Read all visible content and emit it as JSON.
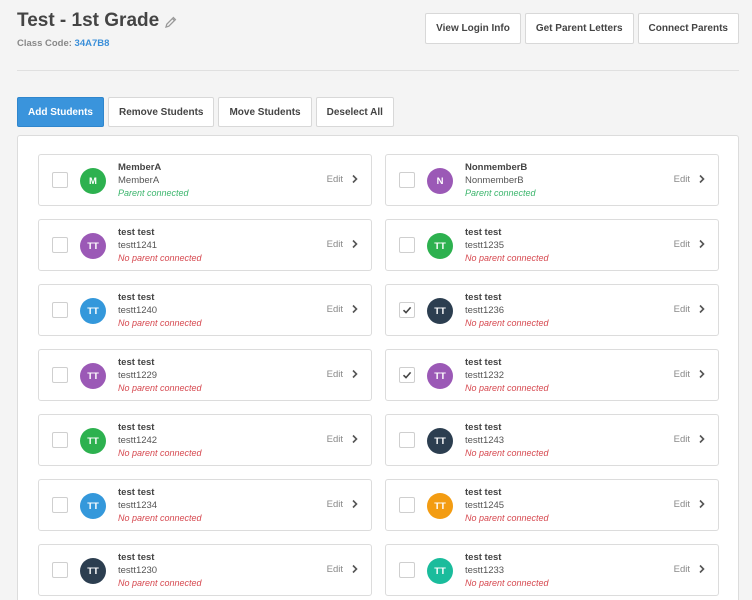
{
  "header": {
    "title": "Test - 1st Grade",
    "class_code_label": "Class Code:",
    "class_code": "34A7B8"
  },
  "top_buttons": {
    "view_login": "View Login Info",
    "parent_letters": "Get Parent Letters",
    "connect_parents": "Connect Parents"
  },
  "action_buttons": {
    "add": "Add Students",
    "remove": "Remove Students",
    "move": "Move Students",
    "deselect": "Deselect All"
  },
  "edit_label": "Edit",
  "colors": {
    "accent": "#3a94dc",
    "green": "#2db14f",
    "purple": "#9b59b6",
    "blue": "#3498db",
    "navy": "#2c3e50",
    "orange": "#f39c12",
    "teal": "#1abc9c"
  },
  "students": [
    {
      "initials": "M",
      "name": "MemberA",
      "username": "MemberA",
      "status": "Parent connected",
      "connected": true,
      "checked": false,
      "color": "#2db14f"
    },
    {
      "initials": "N",
      "name": "NonmemberB",
      "username": "NonmemberB",
      "status": "Parent connected",
      "connected": true,
      "checked": false,
      "color": "#9b59b6"
    },
    {
      "initials": "TT",
      "name": "test test",
      "username": "testt1241",
      "status": "No parent connected",
      "connected": false,
      "checked": false,
      "color": "#9b59b6"
    },
    {
      "initials": "TT",
      "name": "test test",
      "username": "testt1235",
      "status": "No parent connected",
      "connected": false,
      "checked": false,
      "color": "#2db14f"
    },
    {
      "initials": "TT",
      "name": "test test",
      "username": "testt1240",
      "status": "No parent connected",
      "connected": false,
      "checked": false,
      "color": "#3498db"
    },
    {
      "initials": "TT",
      "name": "test test",
      "username": "testt1236",
      "status": "No parent connected",
      "connected": false,
      "checked": true,
      "color": "#2c3e50"
    },
    {
      "initials": "TT",
      "name": "test test",
      "username": "testt1229",
      "status": "No parent connected",
      "connected": false,
      "checked": false,
      "color": "#9b59b6"
    },
    {
      "initials": "TT",
      "name": "test test",
      "username": "testt1232",
      "status": "No parent connected",
      "connected": false,
      "checked": true,
      "color": "#9b59b6"
    },
    {
      "initials": "TT",
      "name": "test test",
      "username": "testt1242",
      "status": "No parent connected",
      "connected": false,
      "checked": false,
      "color": "#2db14f"
    },
    {
      "initials": "TT",
      "name": "test test",
      "username": "testt1243",
      "status": "No parent connected",
      "connected": false,
      "checked": false,
      "color": "#2c3e50"
    },
    {
      "initials": "TT",
      "name": "test test",
      "username": "testt1234",
      "status": "No parent connected",
      "connected": false,
      "checked": false,
      "color": "#3498db"
    },
    {
      "initials": "TT",
      "name": "test test",
      "username": "testt1245",
      "status": "No parent connected",
      "connected": false,
      "checked": false,
      "color": "#f39c12"
    },
    {
      "initials": "TT",
      "name": "test test",
      "username": "testt1230",
      "status": "No parent connected",
      "connected": false,
      "checked": false,
      "color": "#2c3e50"
    },
    {
      "initials": "TT",
      "name": "test test",
      "username": "testt1233",
      "status": "No parent connected",
      "connected": false,
      "checked": false,
      "color": "#1abc9c"
    }
  ]
}
